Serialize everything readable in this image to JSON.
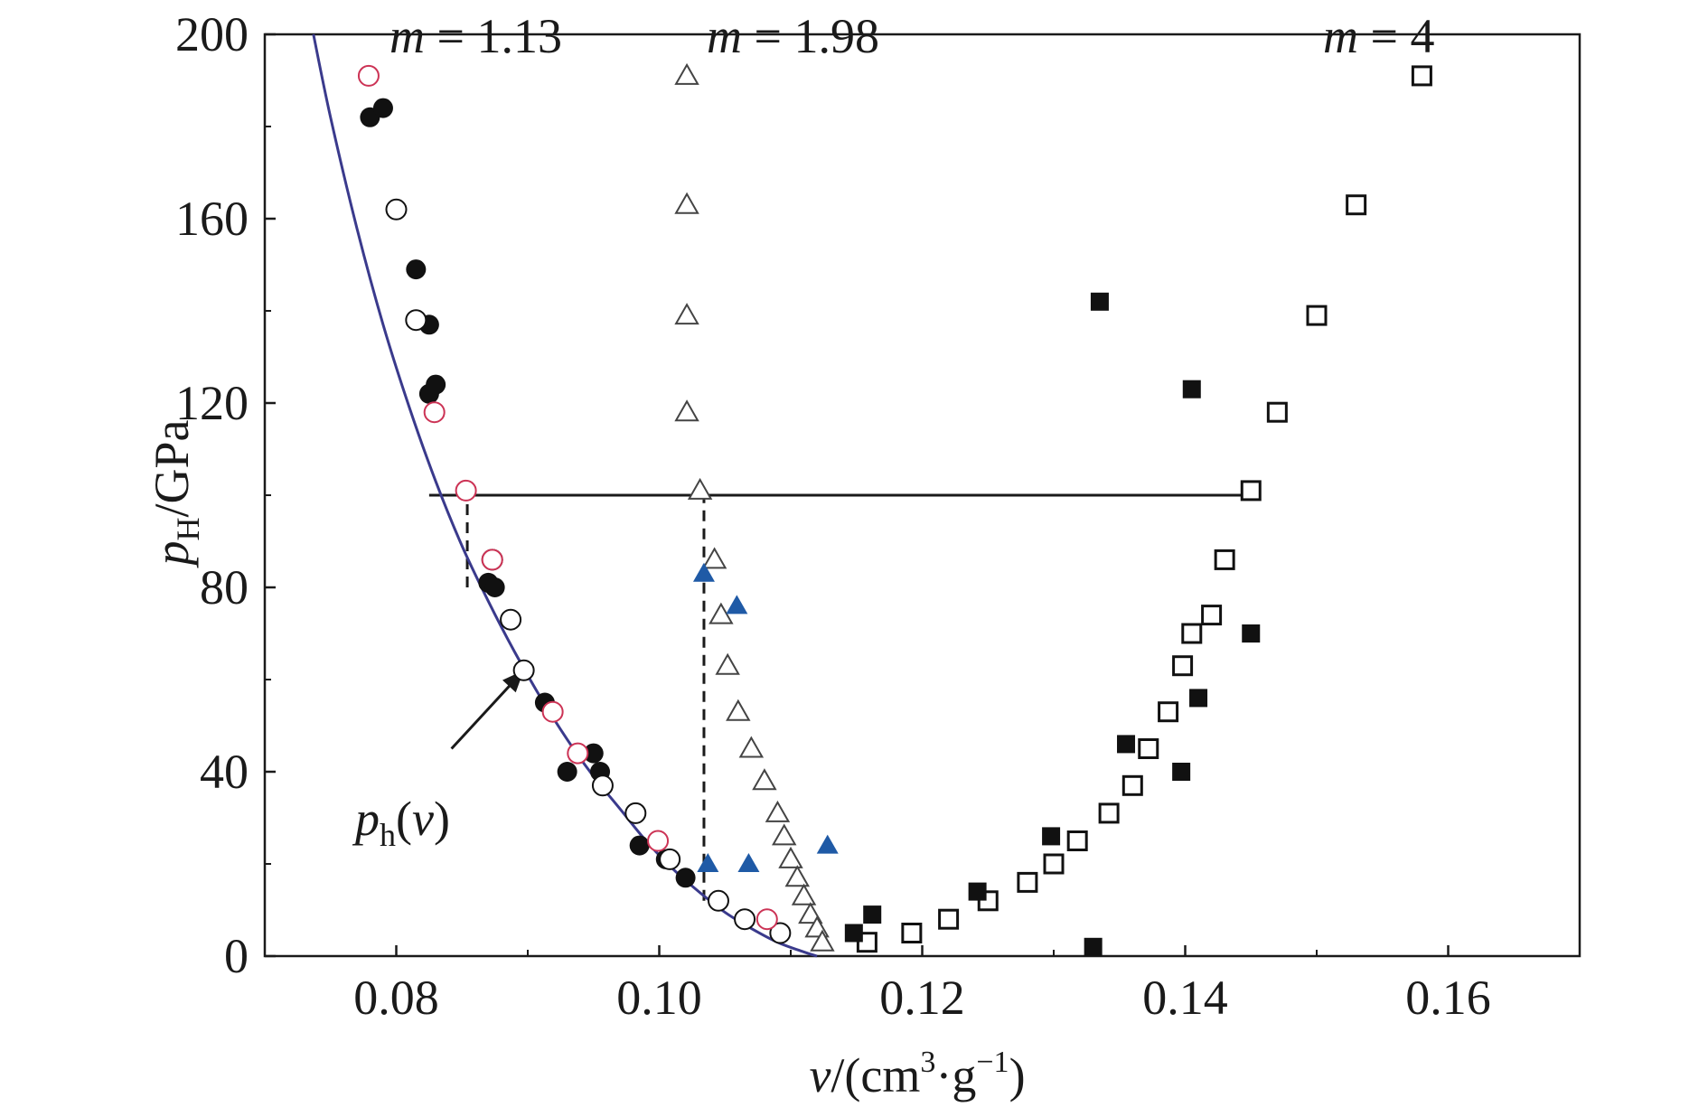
{
  "chart_data": {
    "type": "scatter",
    "xlabel": {
      "var": "v",
      "rest": "/(cm",
      "sup1": "3",
      "dot": "·g",
      "sup2": "−1",
      "close": ")"
    },
    "ylabel": {
      "var": "p",
      "sub": "H",
      "rest": "/GPa"
    },
    "xlim": [
      0.07,
      0.17
    ],
    "ylim": [
      0,
      200
    ],
    "x_ticks": [
      "0.08",
      "0.10",
      "0.12",
      "0.14",
      "0.16"
    ],
    "y_ticks": [
      "0",
      "40",
      "80",
      "120",
      "160",
      "200"
    ],
    "annotations": {
      "m1": {
        "var": "m",
        "eq": " = 1.13"
      },
      "m2": {
        "var": "m",
        "eq": " = 1.98"
      },
      "m3": {
        "var": "m",
        "eq": " = 4"
      },
      "curve_label": {
        "var": "p",
        "sub": "h",
        "open": "(",
        "arg": "v",
        "close": ")"
      }
    },
    "hugoniot_curve": {
      "x": [
        0.0737,
        0.075,
        0.077,
        0.079,
        0.081,
        0.083,
        0.085,
        0.087,
        0.089,
        0.091,
        0.093,
        0.095,
        0.097,
        0.099,
        0.101,
        0.103,
        0.105,
        0.107,
        0.109,
        0.111,
        0.112
      ],
      "y": [
        200,
        182,
        158,
        137,
        119,
        103,
        89,
        77,
        66,
        56,
        47,
        39,
        32,
        25,
        19,
        14,
        9.5,
        6,
        3,
        0.9,
        0
      ]
    },
    "reference_lines": {
      "horizontal": {
        "y": 100,
        "x_from": 0.0825,
        "x_to": 0.145
      },
      "dashed": [
        {
          "x": 0.0854,
          "y_from": 80,
          "y_to": 100
        },
        {
          "x": 0.1034,
          "y_from": 12,
          "y_to": 100
        }
      ]
    },
    "arrow": {
      "from": [
        0.0842,
        45
      ],
      "to": [
        0.0897,
        62
      ]
    },
    "series": [
      {
        "marker": "filled-circle",
        "color": "#111111",
        "x": [
          0.078,
          0.079,
          0.0815,
          0.0825,
          0.0825,
          0.083,
          0.087,
          0.0875,
          0.0913,
          0.093,
          0.095,
          0.0955,
          0.0985,
          0.1005,
          0.102
        ],
        "y": [
          182,
          184,
          149,
          137,
          122,
          124,
          81,
          80,
          55,
          40,
          44,
          40,
          24,
          21,
          17
        ]
      },
      {
        "marker": "open-circle",
        "color": "#111111",
        "x": [
          0.08,
          0.0815,
          0.0873,
          0.0887,
          0.0897,
          0.0957,
          0.0982,
          0.1008,
          0.1045,
          0.1065,
          0.1092
        ],
        "y": [
          162,
          138,
          86,
          73,
          62,
          37,
          31,
          21,
          12,
          8,
          5
        ]
      },
      {
        "marker": "open-circle",
        "color": "#cc3355",
        "x": [
          0.0779,
          0.0829,
          0.0853,
          0.0873,
          0.0919,
          0.0938,
          0.0999,
          0.1082
        ],
        "y": [
          191,
          118,
          101,
          86,
          53,
          44,
          25,
          8
        ]
      },
      {
        "marker": "open-triangle",
        "color": "#444444",
        "x": [
          0.1021,
          0.1021,
          0.1021,
          0.1021,
          0.1031,
          0.1042,
          0.1047,
          0.1052,
          0.106,
          0.107,
          0.108,
          0.109,
          0.1095,
          0.11,
          0.1105,
          0.111,
          0.1115,
          0.112,
          0.1124
        ],
        "y": [
          191,
          163,
          139,
          118,
          101,
          86,
          74,
          63,
          53,
          45,
          38,
          31,
          26,
          21,
          17,
          13,
          9,
          6,
          3
        ]
      },
      {
        "marker": "filled-triangle",
        "color": "#1f5aa6",
        "x": [
          0.1034,
          0.1059,
          0.1037,
          0.1068,
          0.1128
        ],
        "y": [
          83,
          76,
          20,
          20,
          24
        ]
      },
      {
        "marker": "open-square",
        "color": "#111111",
        "x": [
          0.1158,
          0.1192,
          0.122,
          0.125,
          0.128,
          0.13,
          0.1318,
          0.1342,
          0.136,
          0.1372,
          0.1387,
          0.1398,
          0.1405,
          0.142,
          0.143,
          0.145,
          0.147,
          0.15,
          0.153,
          0.158
        ],
        "y": [
          3,
          5,
          8,
          12,
          16,
          20,
          25,
          31,
          37,
          45,
          53,
          63,
          70,
          74,
          86,
          101,
          118,
          139,
          163,
          191
        ]
      },
      {
        "marker": "filled-square",
        "color": "#111111",
        "x": [
          0.1148,
          0.1162,
          0.1242,
          0.1298,
          0.1335,
          0.1355,
          0.1397,
          0.1405,
          0.141,
          0.145,
          0.133
        ],
        "y": [
          5,
          9,
          14,
          26,
          142,
          46,
          40,
          123,
          56,
          70,
          2
        ]
      }
    ]
  }
}
